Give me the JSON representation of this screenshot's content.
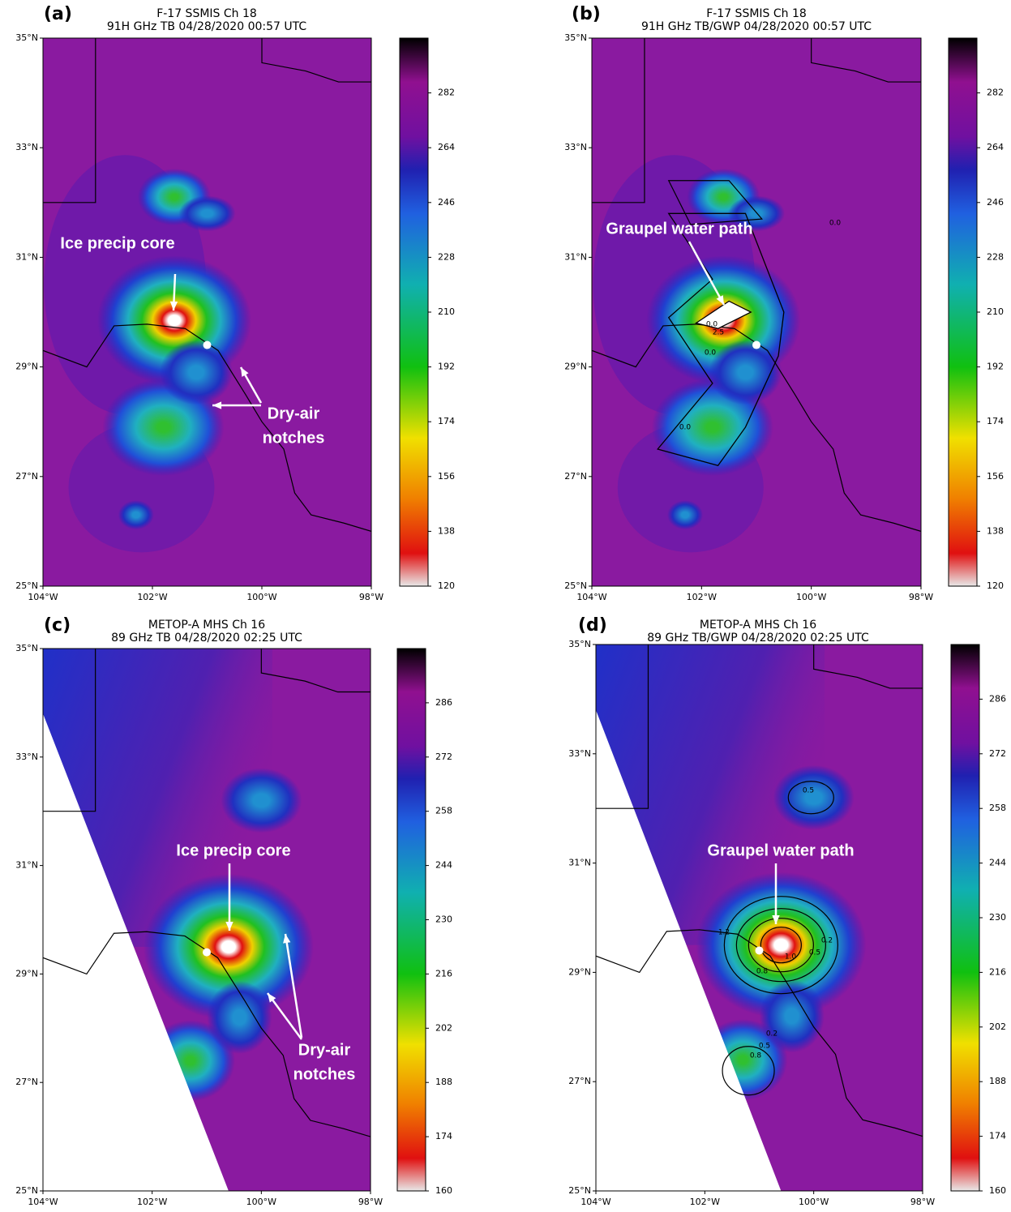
{
  "lat_ticks": [
    {
      "value": 35,
      "label": "35°N"
    },
    {
      "value": 33,
      "label": "33°N"
    },
    {
      "value": 31,
      "label": "31°N"
    },
    {
      "value": 29,
      "label": "29°N"
    },
    {
      "value": 27,
      "label": "27°N"
    },
    {
      "value": 25,
      "label": "25°N"
    }
  ],
  "lon_ticks": [
    {
      "value": -104,
      "label": "104°W"
    },
    {
      "value": -102,
      "label": "102°W"
    },
    {
      "value": -100,
      "label": "100°W"
    },
    {
      "value": -98,
      "label": "98°W"
    }
  ],
  "panels": [
    {
      "label": "(a)",
      "title": [
        "F-17 SSMIS Ch 18",
        "91H GHz TB 04/28/2020 00:57 UTC"
      ],
      "colorbar_range": [
        120,
        300
      ],
      "colorbar_ticks": [
        120,
        138,
        156,
        174,
        192,
        210,
        228,
        246,
        264,
        282
      ],
      "annotations": [
        [
          "Ice precip core"
        ],
        [
          "Dry-air",
          "notches"
        ]
      ]
    },
    {
      "label": "(b)",
      "title": [
        "F-17 SSMIS Ch 18",
        "91H GHz TB/GWP 04/28/2020 00:57 UTC"
      ],
      "colorbar_range": [
        120,
        300
      ],
      "colorbar_ticks": [
        120,
        138,
        156,
        174,
        192,
        210,
        228,
        246,
        264,
        282
      ],
      "annotations": [
        [
          "Graupel water path"
        ]
      ],
      "contour_labels": [
        "0.0",
        "2.5",
        "0.0",
        "0.0",
        "0.0"
      ]
    },
    {
      "label": "(c)",
      "title": [
        "METOP-A MHS Ch 16",
        "89 GHz TB 04/28/2020 02:25 UTC"
      ],
      "colorbar_range": [
        160,
        300
      ],
      "colorbar_ticks": [
        160,
        174,
        188,
        202,
        216,
        230,
        244,
        258,
        272,
        286
      ],
      "annotations": [
        [
          "Ice precip core"
        ],
        [
          "Dry-air",
          "notches"
        ]
      ]
    },
    {
      "label": "(d)",
      "title": [
        "METOP-A MHS Ch 16",
        "89 GHz TB/GWP 04/28/2020 02:25 UTC"
      ],
      "colorbar_range": [
        160,
        300
      ],
      "colorbar_ticks": [
        160,
        174,
        188,
        202,
        216,
        230,
        244,
        258,
        272,
        286
      ],
      "annotations": [
        [
          "Graupel water path"
        ]
      ],
      "contour_labels": [
        "0.5",
        "1.2",
        "0.8",
        "1.0",
        "0.5",
        "0.2",
        "0.2",
        "0.5",
        "0.8"
      ]
    }
  ]
}
